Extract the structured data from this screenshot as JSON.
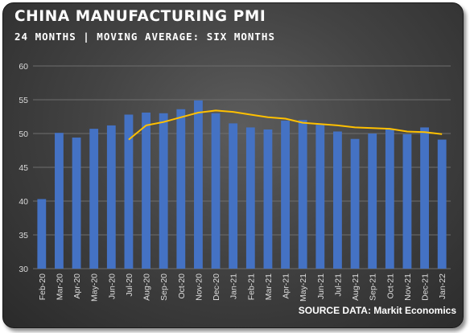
{
  "chart_data": {
    "type": "bar",
    "title": "CHINA MANUFACTURING PMI",
    "subtitle": "24 MONTHS | MOVING AVERAGE: SIX MONTHS",
    "source": "SOURCE DATA: Markit Economics",
    "categories": [
      "Feb-20",
      "Mar-20",
      "Apr-20",
      "May-20",
      "Jun-20",
      "Jul-20",
      "Aug-20",
      "Sep-20",
      "Oct-20",
      "Nov-20",
      "Dec-20",
      "Jan-21",
      "Feb-21",
      "Mar-21",
      "Apr-21",
      "May-21",
      "Jun-21",
      "Jul-21",
      "Aug-21",
      "Sep-21",
      "Oct-21",
      "Nov-21",
      "Dec-21",
      "Jan-22"
    ],
    "series": [
      {
        "type": "bar",
        "color": "#4472c4",
        "values": [
          40.3,
          50.1,
          49.4,
          50.7,
          51.2,
          52.8,
          53.1,
          53.0,
          53.6,
          54.9,
          53.0,
          51.5,
          50.9,
          50.6,
          51.9,
          52.0,
          51.3,
          50.3,
          49.2,
          50.0,
          50.6,
          49.9,
          50.9,
          49.1
        ]
      },
      {
        "type": "line",
        "color": "#ffc000",
        "values": [
          null,
          null,
          null,
          null,
          null,
          49.1,
          51.2,
          51.7,
          52.4,
          53.1,
          53.4,
          53.2,
          52.8,
          52.4,
          52.2,
          51.6,
          51.4,
          51.2,
          50.9,
          50.8,
          50.7,
          50.3,
          50.2,
          49.9
        ]
      }
    ],
    "ylim": [
      30,
      60
    ],
    "yticks": [
      30,
      35,
      40,
      45,
      50,
      55,
      60
    ],
    "grid": true,
    "legend": "none"
  }
}
